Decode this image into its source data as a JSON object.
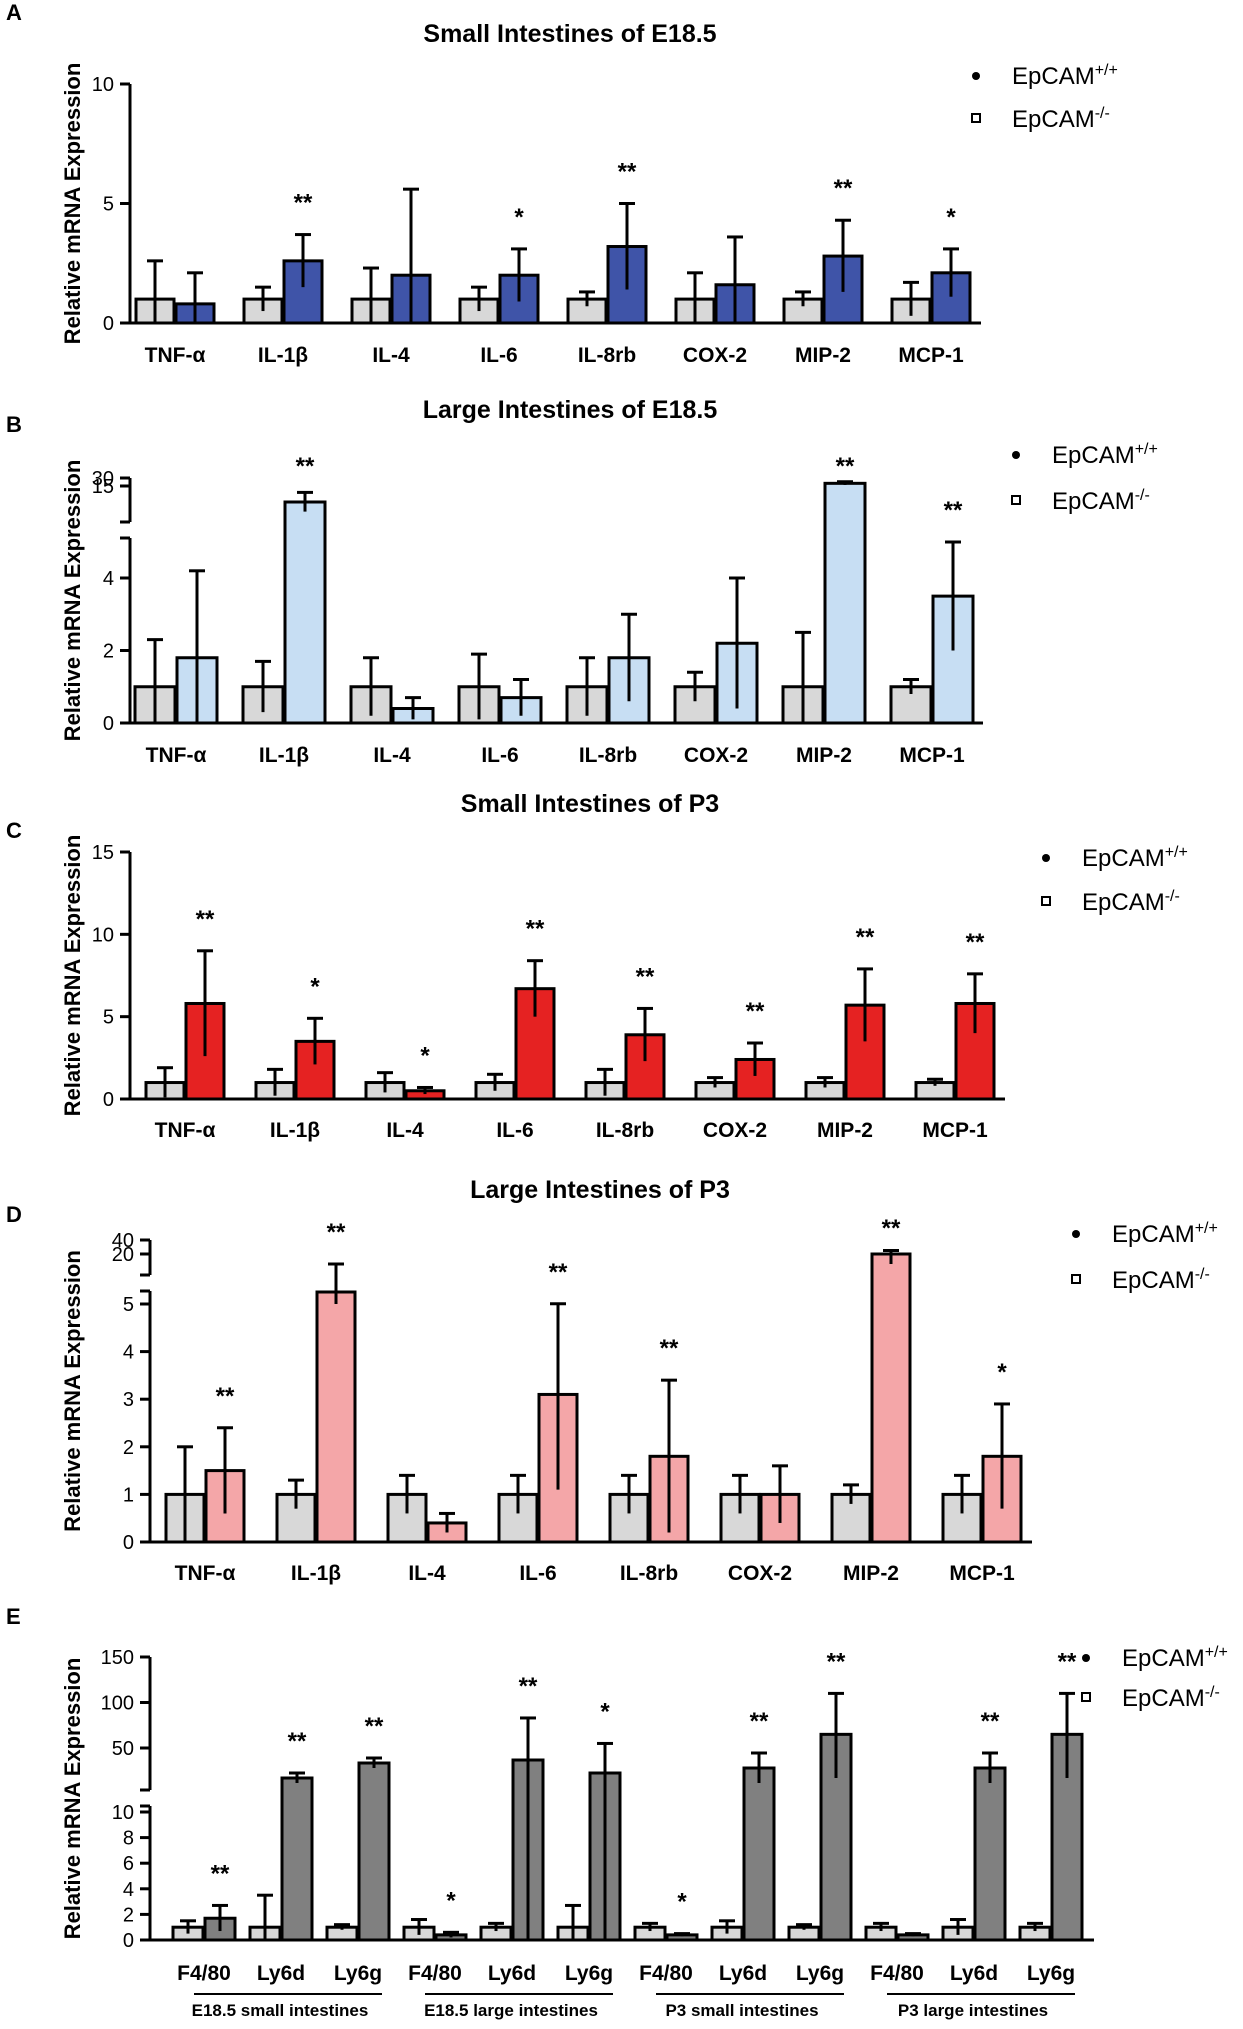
{
  "legend": {
    "wt": "EpCAM",
    "wt_sup": "+/+",
    "ko": "EpCAM",
    "ko_sup": "-/-"
  },
  "ylabel": "Relative mRNA Expression",
  "chart_data": [
    {
      "panel": "A",
      "type": "bar",
      "title": "Small Intestines of E18.5",
      "ylabel": "Relative mRNA Expression",
      "categories": [
        "TNF-α",
        "IL-1β",
        "IL-4",
        "IL-6",
        "IL-8rb",
        "COX-2",
        "MIP-2",
        "MCP-1"
      ],
      "ko_color": "#3f54a8",
      "series": [
        {
          "name": "EpCAM+/+",
          "values": [
            1,
            1,
            1,
            1,
            1,
            1,
            1,
            1
          ],
          "sd": [
            1.6,
            0.5,
            1.3,
            0.5,
            0.3,
            1.1,
            0.3,
            0.7
          ]
        },
        {
          "name": "EpCAM-/-",
          "values": [
            0.8,
            2.6,
            2.0,
            2.0,
            3.2,
            1.6,
            2.8,
            2.1
          ],
          "sd": [
            1.3,
            1.1,
            3.6,
            1.1,
            1.8,
            2.0,
            1.5,
            1.0
          ]
        }
      ],
      "significance": [
        "",
        "**",
        "",
        "*",
        "**",
        "",
        "**",
        "*"
      ],
      "yticks": [
        0,
        5,
        10
      ],
      "ylim": [
        0,
        10
      ]
    },
    {
      "panel": "B",
      "type": "bar",
      "title": "Large Intestines of E18.5",
      "ylabel": "Relative mRNA Expression",
      "categories": [
        "TNF-α",
        "IL-1β",
        "IL-4",
        "IL-6",
        "IL-8rb",
        "COX-2",
        "MIP-2",
        "MCP-1"
      ],
      "ko_color": "#c7def3",
      "series": [
        {
          "name": "EpCAM+/+",
          "values": [
            1,
            1,
            1,
            1,
            1,
            1,
            1,
            1
          ],
          "sd": [
            1.3,
            0.7,
            0.8,
            0.9,
            0.8,
            0.4,
            1.5,
            0.2
          ]
        },
        {
          "name": "EpCAM-/-",
          "values": [
            1.8,
            10,
            0.4,
            0.7,
            1.8,
            2.2,
            20,
            3.5
          ],
          "sd": [
            2.4,
            3,
            0.3,
            0.5,
            1.2,
            1.8,
            3,
            1.5
          ]
        }
      ],
      "significance": [
        "",
        "**",
        "",
        "",
        "",
        "",
        "**",
        "**"
      ],
      "yticks": [
        0,
        2,
        4,
        15,
        30
      ],
      "ylim": [
        0,
        30
      ]
    },
    {
      "panel": "C",
      "type": "bar",
      "title": "Small Intestines of P3",
      "ylabel": "Relative mRNA Expression",
      "categories": [
        "TNF-α",
        "IL-1β",
        "IL-4",
        "IL-6",
        "IL-8rb",
        "COX-2",
        "MIP-2",
        "MCP-1"
      ],
      "ko_color": "#e52222",
      "series": [
        {
          "name": "EpCAM+/+",
          "values": [
            1,
            1,
            1,
            1,
            1,
            1,
            1,
            1
          ],
          "sd": [
            0.9,
            0.8,
            0.6,
            0.5,
            0.8,
            0.3,
            0.3,
            0.2
          ]
        },
        {
          "name": "EpCAM-/-",
          "values": [
            5.8,
            3.5,
            0.5,
            6.7,
            3.9,
            2.4,
            5.7,
            5.8
          ],
          "sd": [
            3.2,
            1.4,
            0.2,
            1.7,
            1.6,
            1.0,
            2.2,
            1.8
          ]
        }
      ],
      "significance": [
        "**",
        "*",
        "*",
        "**",
        "**",
        "**",
        "**",
        "**"
      ],
      "yticks": [
        0,
        5,
        10,
        15
      ],
      "ylim": [
        0,
        15
      ]
    },
    {
      "panel": "D",
      "type": "bar",
      "title": "Large Intestines of P3",
      "ylabel": "Relative mRNA Expression",
      "categories": [
        "TNF-α",
        "IL-1β",
        "IL-4",
        "IL-6",
        "IL-8rb",
        "COX-2",
        "MIP-2",
        "MCP-1"
      ],
      "ko_color": "#f4a6a8",
      "series": [
        {
          "name": "EpCAM+/+",
          "values": [
            1,
            1,
            1,
            1,
            1,
            1,
            1,
            1
          ],
          "sd": [
            1.0,
            0.3,
            0.4,
            0.4,
            0.4,
            0.4,
            0.2,
            0.4
          ]
        },
        {
          "name": "EpCAM-/-",
          "values": [
            1.5,
            10,
            0.4,
            3.1,
            1.8,
            1.0,
            20,
            1.8
          ],
          "sd": [
            0.9,
            5,
            0.2,
            2.0,
            1.6,
            0.6,
            5,
            1.1
          ]
        }
      ],
      "significance": [
        "**",
        "**",
        "",
        "**",
        "**",
        "",
        "**",
        "*"
      ],
      "yticks": [
        0,
        1,
        2,
        3,
        4,
        5,
        20,
        40
      ],
      "ylim": [
        0,
        40
      ]
    },
    {
      "panel": "E",
      "type": "bar",
      "title": "",
      "ylabel": "Relative mRNA Expression",
      "categories": [
        "F4/80",
        "Ly6d",
        "Ly6g",
        "F4/80",
        "Ly6d",
        "Ly6g",
        "F4/80",
        "Ly6d",
        "Ly6g",
        "F4/80",
        "Ly6d",
        "Ly6g"
      ],
      "groups": [
        "E18.5 small intestines",
        "E18.5 large intestines",
        "P3  small intestines",
        "P3  large intestines"
      ],
      "ko_color": "#808080",
      "series": [
        {
          "name": "EpCAM+/+",
          "values": [
            1,
            1,
            1,
            1,
            1,
            1,
            1,
            1,
            1,
            1,
            1,
            1
          ],
          "sd": [
            0.5,
            2.5,
            0.2,
            0.6,
            0.3,
            1.7,
            0.3,
            0.5,
            0.2,
            0.3,
            0.6,
            0.3
          ]
        },
        {
          "name": "EpCAM-/-",
          "values": [
            1.7,
            20,
            35,
            0.4,
            38,
            25,
            0.4,
            30,
            65,
            0.4,
            30,
            65
          ],
          "sd": [
            1.0,
            5,
            5,
            0.2,
            45,
            30,
            0.1,
            15,
            45,
            0.1,
            15,
            45
          ]
        }
      ],
      "significance": [
        "**",
        "**",
        "**",
        "*",
        "**",
        "*",
        "*",
        "**",
        "**",
        "",
        "**",
        "**"
      ],
      "yticks": [
        0,
        2,
        4,
        6,
        8,
        10,
        50,
        100,
        150
      ],
      "ylim": [
        0,
        150
      ]
    }
  ]
}
